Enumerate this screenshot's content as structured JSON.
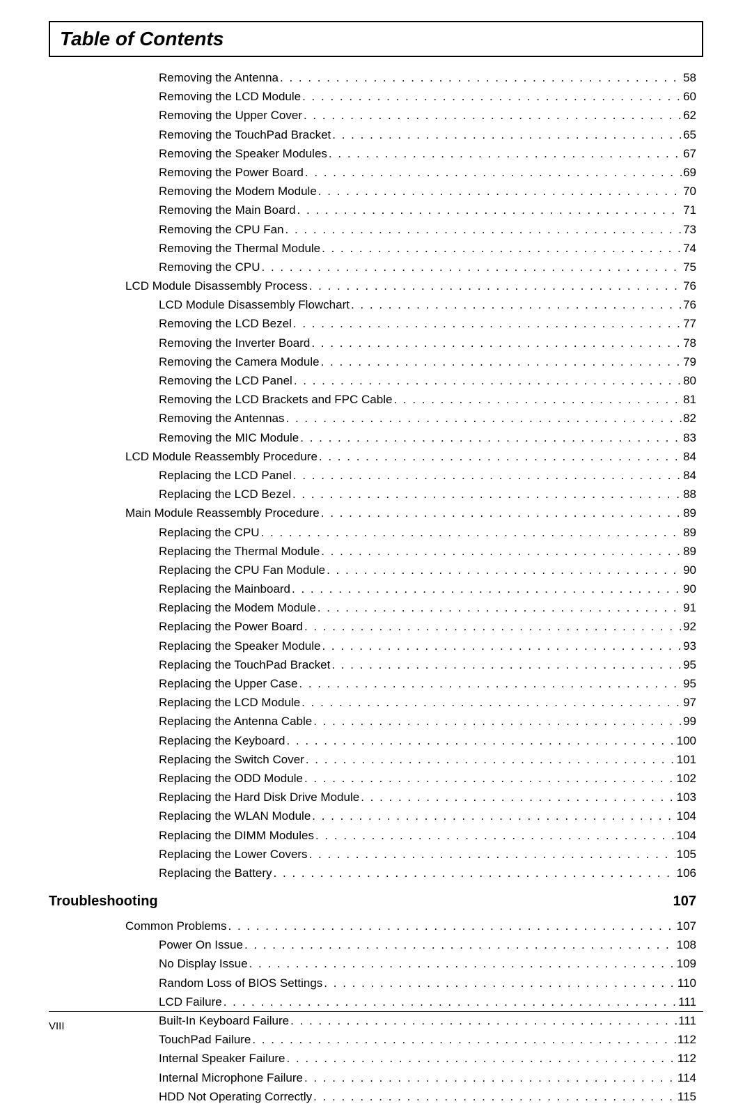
{
  "title": "Table of Contents",
  "entries": [
    {
      "level": 2,
      "label": "Removing the Antenna",
      "page": "58"
    },
    {
      "level": 2,
      "label": "Removing the LCD Module",
      "page": "60"
    },
    {
      "level": 2,
      "label": "Removing the Upper Cover",
      "page": "62"
    },
    {
      "level": 2,
      "label": "Removing the TouchPad Bracket",
      "page": "65"
    },
    {
      "level": 2,
      "label": "Removing the Speaker Modules",
      "page": "67"
    },
    {
      "level": 2,
      "label": "Removing the Power Board",
      "page": "69"
    },
    {
      "level": 2,
      "label": "Removing the Modem Module",
      "page": "70"
    },
    {
      "level": 2,
      "label": "Removing the Main Board",
      "page": "71"
    },
    {
      "level": 2,
      "label": "Removing the CPU Fan",
      "page": "73"
    },
    {
      "level": 2,
      "label": "Removing the Thermal Module",
      "page": "74"
    },
    {
      "level": 2,
      "label": "Removing the CPU",
      "page": "75"
    },
    {
      "level": 1,
      "label": "LCD Module Disassembly Process",
      "page": "76"
    },
    {
      "level": 2,
      "label": "LCD Module Disassembly Flowchart",
      "page": "76"
    },
    {
      "level": 2,
      "label": "Removing the LCD Bezel",
      "page": "77"
    },
    {
      "level": 2,
      "label": "Removing the Inverter Board",
      "page": "78"
    },
    {
      "level": 2,
      "label": "Removing the Camera Module",
      "page": "79"
    },
    {
      "level": 2,
      "label": "Removing the LCD Panel",
      "page": "80"
    },
    {
      "level": 2,
      "label": "Removing the LCD Brackets and FPC Cable",
      "page": "81"
    },
    {
      "level": 2,
      "label": "Removing the Antennas",
      "page": "82"
    },
    {
      "level": 2,
      "label": "Removing the MIC Module",
      "page": "83"
    },
    {
      "level": 1,
      "label": "LCD Module Reassembly Procedure",
      "page": "84"
    },
    {
      "level": 2,
      "label": "Replacing the LCD Panel",
      "page": "84"
    },
    {
      "level": 2,
      "label": "Replacing the LCD Bezel",
      "page": "88"
    },
    {
      "level": 1,
      "label": "Main Module Reassembly Procedure",
      "page": "89"
    },
    {
      "level": 2,
      "label": "Replacing the CPU",
      "page": "89"
    },
    {
      "level": 2,
      "label": "Replacing the Thermal Module",
      "page": "89"
    },
    {
      "level": 2,
      "label": "Replacing the CPU Fan Module",
      "page": "90"
    },
    {
      "level": 2,
      "label": "Replacing the Mainboard",
      "page": "90"
    },
    {
      "level": 2,
      "label": "Replacing the Modem Module",
      "page": "91"
    },
    {
      "level": 2,
      "label": "Replacing the Power Board",
      "page": "92"
    },
    {
      "level": 2,
      "label": "Replacing the Speaker Module",
      "page": "93"
    },
    {
      "level": 2,
      "label": "Replacing the TouchPad Bracket",
      "page": "95"
    },
    {
      "level": 2,
      "label": "Replacing the Upper Case",
      "page": "95"
    },
    {
      "level": 2,
      "label": "Replacing the LCD Module",
      "page": "97"
    },
    {
      "level": 2,
      "label": "Replacing the Antenna Cable",
      "page": "99"
    },
    {
      "level": 2,
      "label": "Replacing the Keyboard",
      "page": "100"
    },
    {
      "level": 2,
      "label": "Replacing the Switch Cover",
      "page": "101"
    },
    {
      "level": 2,
      "label": "Replacing the ODD Module",
      "page": "102"
    },
    {
      "level": 2,
      "label": "Replacing the Hard Disk Drive Module",
      "page": "103"
    },
    {
      "level": 2,
      "label": "Replacing the WLAN Module",
      "page": "104"
    },
    {
      "level": 2,
      "label": "Replacing the DIMM Modules",
      "page": "104"
    },
    {
      "level": 2,
      "label": "Replacing the Lower Covers",
      "page": "105"
    },
    {
      "level": 2,
      "label": "Replacing the Battery",
      "page": "106"
    }
  ],
  "section": {
    "label": "Troubleshooting",
    "page": "107"
  },
  "entries2": [
    {
      "level": 1,
      "label": "Common Problems",
      "page": "107"
    },
    {
      "level": 2,
      "label": "Power On Issue",
      "page": "108"
    },
    {
      "level": 2,
      "label": "No Display Issue",
      "page": "109"
    },
    {
      "level": 2,
      "label": "Random Loss of BIOS Settings",
      "page": "110"
    },
    {
      "level": 2,
      "label": "LCD Failure",
      "page": "111"
    },
    {
      "level": 2,
      "label": "Built-In Keyboard Failure",
      "page": "111"
    },
    {
      "level": 2,
      "label": "TouchPad Failure",
      "page": "112"
    },
    {
      "level": 2,
      "label": "Internal Speaker Failure",
      "page": "112"
    },
    {
      "level": 2,
      "label": "Internal Microphone Failure",
      "page": "114"
    },
    {
      "level": 2,
      "label": "HDD Not Operating Correctly",
      "page": "115"
    }
  ],
  "footer_page": "VIII"
}
